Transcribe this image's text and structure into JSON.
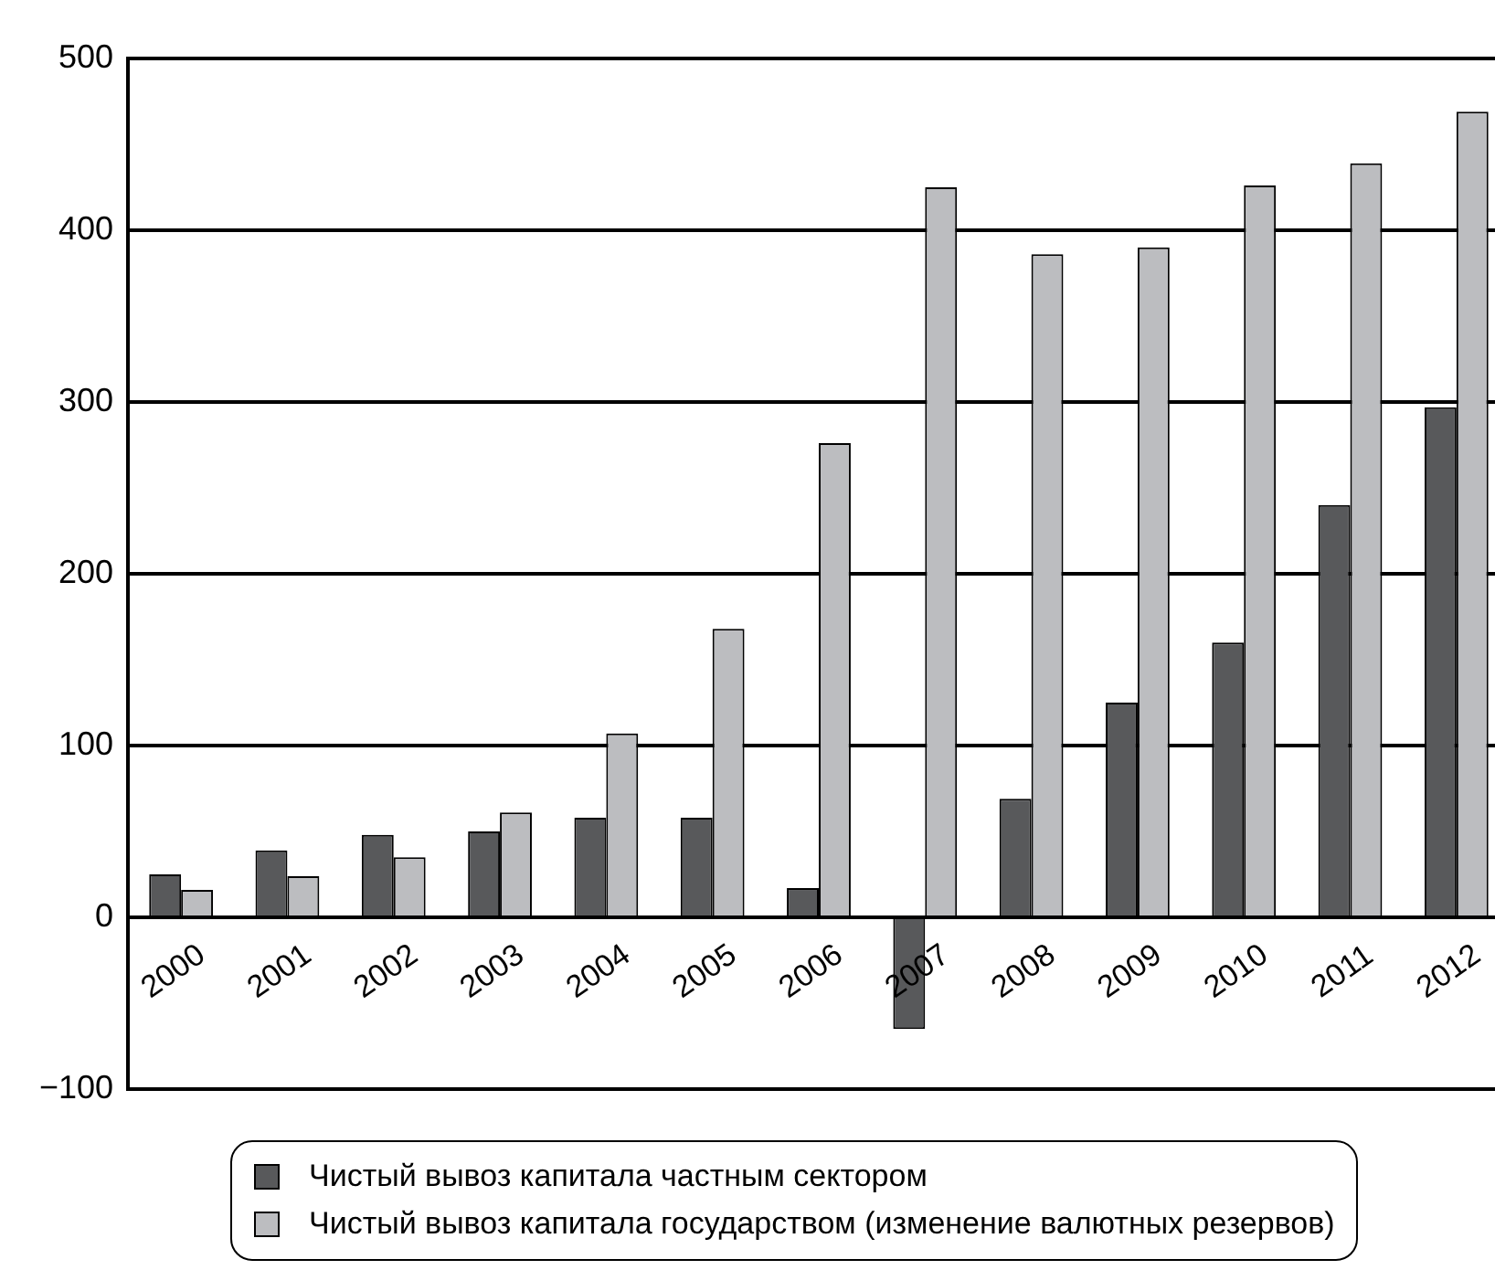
{
  "chart_data": {
    "type": "bar",
    "categories": [
      "2000",
      "2001",
      "2002",
      "2003",
      "2004",
      "2005",
      "2006",
      "2007",
      "2008",
      "2009",
      "2010",
      "2011",
      "2012"
    ],
    "series": [
      {
        "name": "Чистый вывоз капитала частным сектором",
        "color": "#58595b",
        "values": [
          25,
          39,
          48,
          50,
          58,
          58,
          17,
          -65,
          69,
          125,
          160,
          240,
          297
        ]
      },
      {
        "name": "Чистый вывоз капитала государством (изменение валютных резервов)",
        "color": "#bcbdc0",
        "values": [
          16,
          24,
          35,
          61,
          107,
          168,
          276,
          425,
          386,
          390,
          426,
          439,
          469
        ]
      }
    ],
    "ylim": [
      -100,
      500
    ],
    "yticks": [
      {
        "value": -100,
        "label": "−100"
      },
      0,
      100,
      200,
      300,
      400,
      500
    ],
    "grid": "y",
    "legend": "bottom"
  }
}
